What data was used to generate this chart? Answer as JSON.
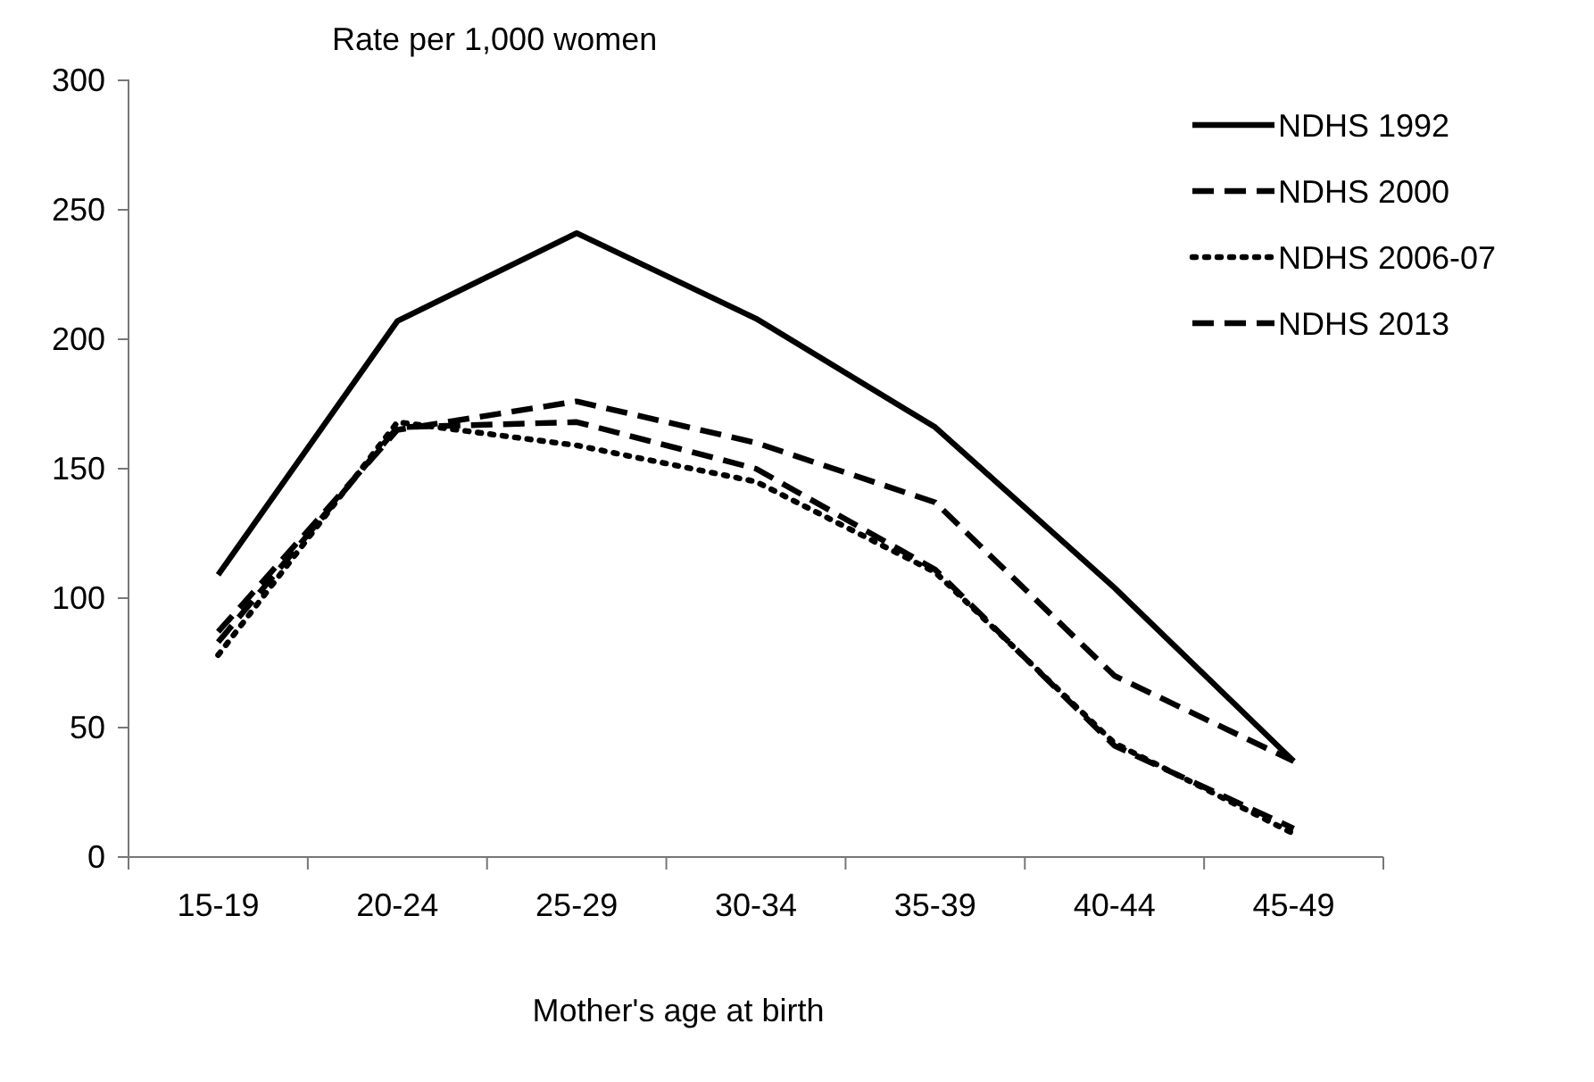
{
  "chart_data": {
    "type": "line",
    "ylabel": "Rate per 1,000 women",
    "xlabel": "Mother's age at birth",
    "categories": [
      "15-19",
      "20-24",
      "25-29",
      "30-34",
      "35-39",
      "40-44",
      "45-49"
    ],
    "series": [
      {
        "name": "NDHS 1992",
        "color": "#000000",
        "line_style": "solid",
        "values": [
          109,
          207,
          241,
          208,
          166,
          104,
          37
        ]
      },
      {
        "name": "NDHS 2000",
        "color": "#000000",
        "line_style": "dashed",
        "values": [
          87,
          165,
          176,
          160,
          137,
          70,
          37
        ]
      },
      {
        "name": "NDHS 2006-07",
        "color": "#000000",
        "line_style": "dotted",
        "values": [
          78,
          168,
          159,
          145,
          110,
          44,
          9
        ]
      },
      {
        "name": "NDHS 2013",
        "color": "#000000",
        "line_style": "dashed",
        "values": [
          83,
          166,
          168,
          150,
          111,
          43,
          11
        ]
      }
    ],
    "ylim": [
      0,
      300
    ],
    "yticks": [
      0,
      50,
      100,
      150,
      200,
      250,
      300
    ],
    "grid": false,
    "legend": "top right",
    "marker": "none"
  }
}
